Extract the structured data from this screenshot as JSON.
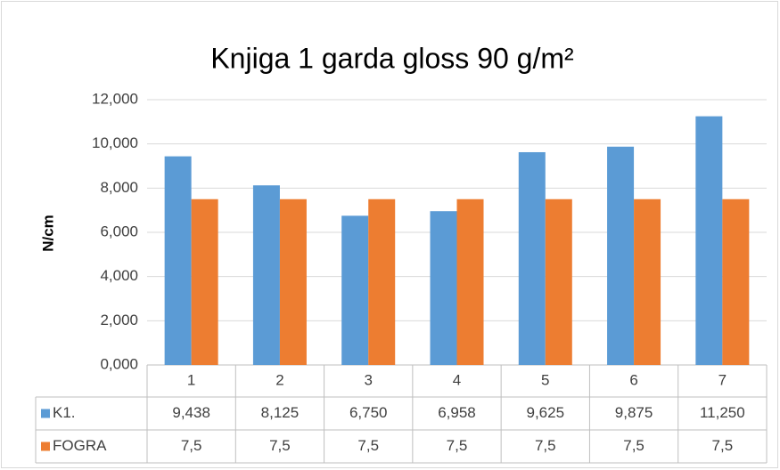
{
  "chart_data": {
    "type": "bar",
    "title": "Knjiga 1 garda gloss 90 g/m²",
    "y_label": "N/cm",
    "categories": [
      "1",
      "2",
      "3",
      "4",
      "5",
      "6",
      "7"
    ],
    "series": [
      {
        "name": "K1.",
        "color": "#5b9bd5",
        "values": [
          9.438,
          8.125,
          6.75,
          6.958,
          9.625,
          9.875,
          11.25
        ],
        "value_labels": [
          "9,438",
          "8,125",
          "6,750",
          "6,958",
          "9,625",
          "9,875",
          "11,250"
        ]
      },
      {
        "name": "FOGRA",
        "color": "#ed7d31",
        "values": [
          7.5,
          7.5,
          7.5,
          7.5,
          7.5,
          7.5,
          7.5
        ],
        "value_labels": [
          "7,5",
          "7,5",
          "7,5",
          "7,5",
          "7,5",
          "7,5",
          "7,5"
        ]
      }
    ],
    "ylim": [
      0,
      12
    ],
    "yticks": [
      {
        "value": 0,
        "label": "0,000"
      },
      {
        "value": 2,
        "label": "2,000"
      },
      {
        "value": 4,
        "label": "4,000"
      },
      {
        "value": 6,
        "label": "6,000"
      },
      {
        "value": 8,
        "label": "8,000"
      },
      {
        "value": 10,
        "label": "10,000"
      },
      {
        "value": 12,
        "label": "12,000"
      }
    ],
    "grid": true
  }
}
